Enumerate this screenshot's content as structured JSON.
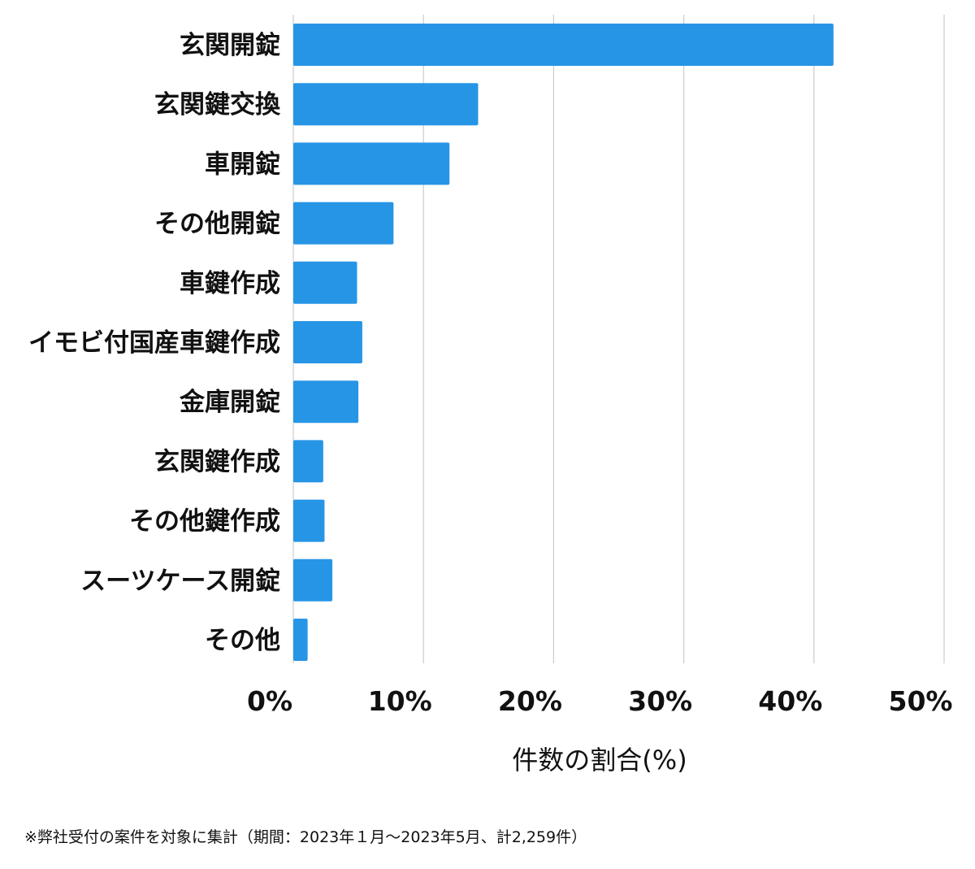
{
  "chart_data": {
    "type": "bar",
    "orientation": "horizontal",
    "categories": [
      "玄関開錠",
      "玄関鍵交換",
      "車開錠",
      "その他開錠",
      "車鍵作成",
      "イモビ付国産車鍵作成",
      "金庫開錠",
      "玄関鍵作成",
      "その他鍵作成",
      "スーツケース開錠",
      "その他"
    ],
    "values": [
      41.5,
      14.2,
      12.0,
      7.7,
      4.9,
      5.3,
      5.0,
      2.3,
      2.4,
      3.0,
      1.1
    ],
    "xticks": [
      "0%",
      "10%",
      "20%",
      "30%",
      "40%",
      "50%"
    ],
    "xlim": [
      0,
      50
    ],
    "xlabel": "件数の割合(%)",
    "grid": "vertical",
    "bar_color": "#2795e6"
  },
  "footnote": "※弊社受付の案件を対象に集計（期間：2023年１月～2023年5月、計2,259件）"
}
